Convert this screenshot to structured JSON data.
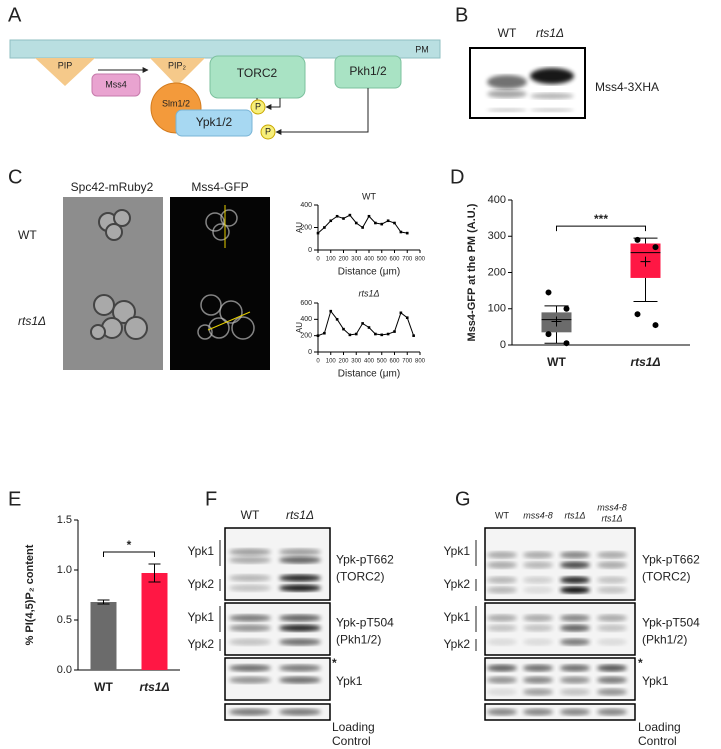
{
  "figure": {
    "panel_labels": [
      "A",
      "B",
      "C",
      "D",
      "E",
      "F",
      "G"
    ],
    "a": {
      "pm": "PM",
      "pip": "PIP",
      "mss4": "Mss4",
      "pip2": "PIP₂",
      "slm": "Slm1/2",
      "torc2": "TORC2",
      "pkh": "Pkh1/2",
      "ypk": "Ypk1/2",
      "p": "P"
    },
    "b": {
      "lanes": [
        "WT",
        "rts1Δ"
      ],
      "blot": "Mss4-3XHA"
    },
    "c": {
      "columns": [
        "Spc42-mRuby2",
        "Mss4-GFP"
      ],
      "rows": [
        "WT",
        "rts1Δ"
      ]
    },
    "f": {
      "lanes": [
        "WT",
        "rts1Δ"
      ],
      "blot1": {
        "left": [
          "Ypk1",
          "Ypk2"
        ],
        "right": [
          "Ypk-pT662",
          "(TORC2)"
        ]
      },
      "blot2": {
        "left": [
          "Ypk1",
          "Ypk2"
        ],
        "right": [
          "Ypk-pT504",
          "(Pkh1/2)"
        ]
      },
      "blot3": {
        "right": [
          "*",
          "Ypk1"
        ]
      },
      "loading": [
        "Loading",
        "Control"
      ]
    },
    "g": {
      "lanes": [
        "WT",
        "mss4-8",
        "rts1Δ"
      ],
      "lane4": [
        "mss4-8",
        "rts1Δ"
      ],
      "blot1": {
        "left": [
          "Ypk1",
          "Ypk2"
        ],
        "right": [
          "Ypk-pT662",
          "(TORC2)"
        ]
      },
      "blot2": {
        "left": [
          "Ypk1",
          "Ypk2"
        ],
        "right": [
          "Ypk-pT504",
          "(Pkh1/2)"
        ]
      },
      "blot3": {
        "right": [
          "*",
          "Ypk1"
        ]
      },
      "loading": [
        "Loading",
        "Control"
      ]
    }
  },
  "chart_data": [
    {
      "type": "line",
      "title": "WT",
      "xlabel": "Distance (μm)",
      "ylabel": "AU",
      "x": [
        0,
        50,
        100,
        150,
        200,
        250,
        300,
        350,
        400,
        450,
        500,
        550,
        600,
        650,
        700
      ],
      "values": [
        150,
        200,
        260,
        300,
        280,
        310,
        240,
        200,
        300,
        240,
        230,
        260,
        240,
        160,
        150
      ],
      "xlim": [
        0,
        800
      ],
      "xticks": [
        0,
        100,
        200,
        300,
        400,
        500,
        600,
        700,
        800
      ],
      "ylim": [
        0,
        400
      ],
      "yticks": [
        0,
        200,
        400
      ],
      "color": "#000000"
    },
    {
      "type": "line",
      "title": "rts1Δ",
      "xlabel": "Distance (μm)",
      "ylabel": "AU",
      "x": [
        0,
        50,
        100,
        150,
        200,
        250,
        300,
        350,
        400,
        450,
        500,
        550,
        600,
        650,
        700,
        750
      ],
      "values": [
        200,
        230,
        500,
        400,
        280,
        210,
        220,
        350,
        300,
        220,
        210,
        220,
        250,
        480,
        420,
        200
      ],
      "xlim": [
        0,
        800
      ],
      "xticks": [
        0,
        100,
        200,
        300,
        400,
        500,
        600,
        700,
        800
      ],
      "ylim": [
        0,
        600
      ],
      "yticks": [
        0,
        200,
        400,
        600
      ],
      "color": "#000000"
    },
    {
      "type": "box",
      "ylabel": "Mss4-GFP at the PM (A.U.)",
      "categories": [
        "WT",
        "rts1Δ"
      ],
      "boxes": [
        {
          "min": 5,
          "q1": 35,
          "median": 70,
          "q3": 90,
          "max": 108,
          "mean": 65,
          "points": [
            145,
            100,
            30,
            5
          ]
        },
        {
          "min": 120,
          "q1": 185,
          "median": 255,
          "q3": 280,
          "max": 295,
          "mean": 230,
          "points": [
            290,
            270,
            85,
            55
          ]
        }
      ],
      "colors": [
        "#6b6b6b",
        "#ff1744"
      ],
      "ylim": [
        0,
        400
      ],
      "yticks": [
        0,
        100,
        200,
        300,
        400
      ],
      "annotation": "***"
    },
    {
      "type": "bar",
      "ylabel": "% PI(4,5)P₂ content",
      "categories": [
        "WT",
        "rts1Δ"
      ],
      "values": [
        0.68,
        0.97
      ],
      "errors": [
        0.02,
        0.09
      ],
      "colors": [
        "#6b6b6b",
        "#ff1744"
      ],
      "ylim": [
        0,
        1.5
      ],
      "yticks": [
        {
          "value": 0,
          "label": "0.0"
        },
        {
          "value": 0.5,
          "label": "0.5"
        },
        {
          "value": 1,
          "label": "1.0"
        },
        {
          "value": 1.5,
          "label": "1.5"
        }
      ],
      "annotation": "*"
    }
  ]
}
